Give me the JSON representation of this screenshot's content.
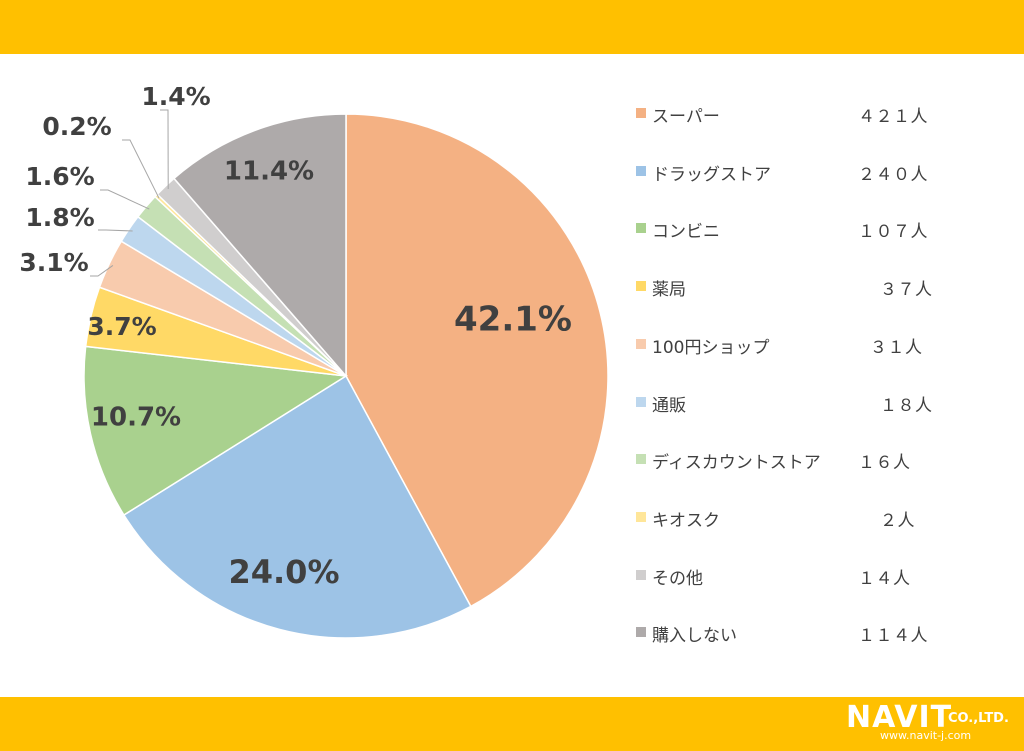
{
  "chart_data": {
    "type": "pie",
    "slices": [
      {
        "label": "スーパー",
        "value": 42.1,
        "percent_label": "42.1%",
        "count": "４２１人",
        "color": "#F4B183"
      },
      {
        "label": "ドラッグストア",
        "value": 24.0,
        "percent_label": "24.0%",
        "count": "２４０人",
        "color": "#9DC3E6"
      },
      {
        "label": "コンビニ",
        "value": 10.7,
        "percent_label": "10.7%",
        "count": "１０７人",
        "color": "#A9D18E"
      },
      {
        "label": "薬局",
        "value": 3.7,
        "percent_label": "3.7%",
        "count": "３７人",
        "color": "#FFD966"
      },
      {
        "label": "100円ショップ",
        "value": 3.1,
        "percent_label": "3.1%",
        "count": "３１人",
        "color": "#F8CBAD"
      },
      {
        "label": "通販",
        "value": 1.8,
        "percent_label": "1.8%",
        "count": "１８人",
        "color": "#BDD7EE"
      },
      {
        "label": "ディスカウントストア",
        "value": 1.6,
        "percent_label": "1.6%",
        "count": "１６人",
        "color": "#C5E0B4"
      },
      {
        "label": "キオスク",
        "value": 0.2,
        "percent_label": "0.2%",
        "count": "２人",
        "color": "#FFE699"
      },
      {
        "label": "その他",
        "value": 1.4,
        "percent_label": "1.4%",
        "count": "１４人",
        "color": "#D0CECE"
      },
      {
        "label": "購入しない",
        "value": 11.4,
        "percent_label": "11.4%",
        "count": "１１４人",
        "color": "#AEAAAA"
      }
    ],
    "legend_position": "right"
  },
  "brand": {
    "logo_text": "NAVIT",
    "company_suffix": "CO.,LTD.",
    "url": "www.navit-j.com",
    "accent_color": "#FFC000"
  }
}
